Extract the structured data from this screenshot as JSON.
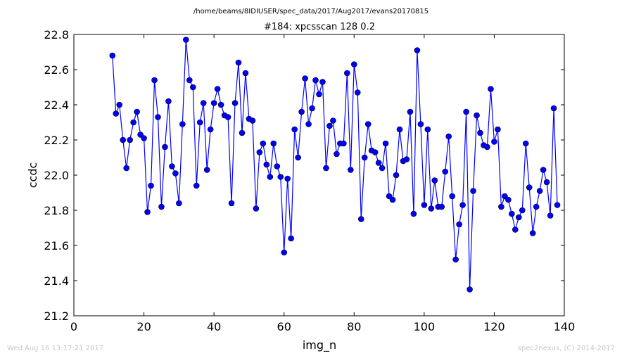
{
  "chart_data": {
    "type": "line",
    "suptitle": "/home/beams/8IDIUSER/spec_data/2017/Aug2017/evans20170815",
    "title": "#184: xpcsscan 128 0.2",
    "xlabel": "img_n",
    "ylabel": "ccdc",
    "xlim": [
      0,
      140
    ],
    "ylim": [
      21.2,
      22.8
    ],
    "xticks": [
      0,
      20,
      40,
      60,
      80,
      100,
      120,
      140
    ],
    "yticks": [
      21.2,
      21.4,
      21.6,
      21.8,
      22.0,
      22.2,
      22.4,
      22.6,
      22.8
    ],
    "xtick_labels": [
      "0",
      "20",
      "40",
      "60",
      "80",
      "100",
      "120",
      "140"
    ],
    "ytick_labels": [
      "21.2",
      "21.4",
      "21.6",
      "21.8",
      "22.0",
      "22.2",
      "22.4",
      "22.6",
      "22.8"
    ],
    "grid": false,
    "legend": "none",
    "marker": "circle",
    "line_color": "#0000ff",
    "x": [
      11,
      12,
      13,
      14,
      15,
      16,
      17,
      18,
      19,
      20,
      21,
      22,
      23,
      24,
      25,
      26,
      27,
      28,
      29,
      30,
      31,
      32,
      33,
      34,
      35,
      36,
      37,
      38,
      39,
      40,
      41,
      42,
      43,
      44,
      45,
      46,
      47,
      48,
      49,
      50,
      51,
      52,
      53,
      54,
      55,
      56,
      57,
      58,
      59,
      60,
      61,
      62,
      63,
      64,
      65,
      66,
      67,
      68,
      69,
      70,
      71,
      72,
      73,
      74,
      75,
      76,
      77,
      78,
      79,
      80,
      81,
      82,
      83,
      84,
      85,
      86,
      87,
      88,
      89,
      90,
      91,
      92,
      93,
      94,
      95,
      96,
      97,
      98,
      99,
      100,
      101,
      102,
      103,
      104,
      105,
      106,
      107,
      108,
      109,
      110,
      111,
      112,
      113,
      114,
      115,
      116,
      117,
      118,
      119,
      120,
      121,
      122,
      123,
      124,
      125,
      126,
      127,
      128,
      129,
      130,
      131,
      132,
      133,
      134,
      135,
      136,
      137,
      138
    ],
    "y": [
      22.68,
      22.35,
      22.4,
      22.2,
      22.04,
      22.2,
      22.3,
      22.36,
      22.23,
      22.21,
      21.79,
      21.94,
      22.54,
      22.33,
      21.82,
      22.16,
      22.42,
      22.05,
      22.01,
      21.84,
      22.29,
      22.77,
      22.54,
      22.5,
      21.94,
      22.3,
      22.41,
      22.03,
      22.26,
      22.41,
      22.49,
      22.4,
      22.34,
      22.33,
      21.84,
      22.41,
      22.64,
      22.24,
      22.58,
      22.32,
      22.31,
      21.81,
      22.13,
      22.18,
      22.06,
      21.99,
      22.18,
      22.05,
      21.99,
      21.56,
      21.98,
      21.64,
      22.26,
      22.1,
      22.36,
      22.55,
      22.29,
      22.38,
      22.54,
      22.46,
      22.53,
      22.04,
      22.28,
      22.31,
      22.12,
      22.18,
      22.18,
      22.58,
      22.03,
      22.63,
      22.47,
      21.75,
      22.1,
      22.29,
      22.14,
      22.13,
      22.07,
      22.04,
      22.18,
      21.88,
      21.86,
      22.0,
      22.26,
      22.08,
      22.09,
      22.36,
      21.78,
      22.71,
      22.29,
      21.83,
      22.26,
      21.81,
      21.97,
      21.82,
      21.82,
      22.02,
      22.22,
      21.88,
      21.52,
      21.72,
      21.83,
      22.36,
      21.35,
      21.91,
      22.34,
      22.24,
      22.17,
      22.16,
      22.49,
      22.19,
      22.26,
      21.82,
      21.88,
      21.86,
      21.78,
      21.69,
      21.76,
      21.8,
      22.18,
      21.93,
      21.67,
      21.82,
      21.91,
      22.03,
      21.96,
      21.77,
      22.38,
      21.83
    ]
  },
  "footer": {
    "left": "Wed Aug 16 13:17:21 2017",
    "right": "spec2nexus, (C) 2014-2017"
  }
}
